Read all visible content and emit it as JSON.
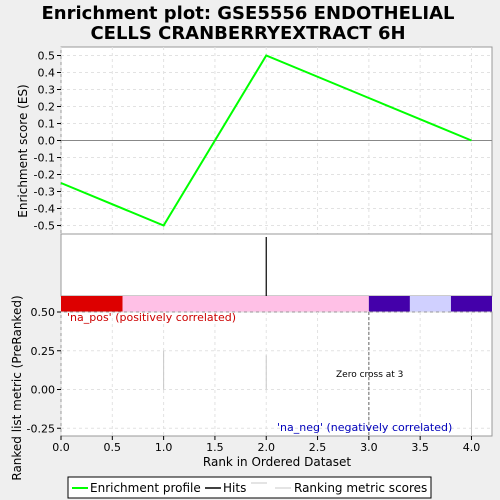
{
  "chart_data": {
    "type": "line",
    "title": "Enrichment plot: GSE5556 ENDOTHELIAL CELLS CRANBERRYEXTRACT 6H",
    "title_lines": [
      "Enrichment plot: GSE5556 ENDOTHELIAL",
      "CELLS CRANBERRYEXTRACT 6H"
    ],
    "xlabel": "Rank in Ordered Dataset",
    "x_ticks": [
      "0.0",
      "0.5",
      "1.0",
      "1.5",
      "2.0",
      "2.5",
      "3.0",
      "3.5",
      "4.0"
    ],
    "xlim": [
      0,
      4.2
    ],
    "top_panel": {
      "ylabel": "Enrichment score (ES)",
      "ylim": [
        -0.55,
        0.55
      ],
      "y_ticks": [
        "0.5",
        "0.4",
        "0.3",
        "0.2",
        "0.1",
        "0.0",
        "-0.1",
        "-0.2",
        "-0.3",
        "-0.4",
        "-0.5"
      ],
      "grid": true,
      "series": [
        {
          "x": [
            0,
            1,
            2,
            3,
            4
          ],
          "y": [
            -0.25,
            -0.5,
            0.5,
            0.25,
            0.0
          ]
        }
      ]
    },
    "hits": [
      2
    ],
    "color_bar": [
      {
        "from": 0.0,
        "to": 0.6,
        "color": "#dd0000"
      },
      {
        "from": 0.6,
        "to": 3.0,
        "color": "#ffc0e6"
      },
      {
        "from": 3.0,
        "to": 3.4,
        "color": "#4400aa"
      },
      {
        "from": 3.4,
        "to": 3.8,
        "color": "#d0d0ff"
      },
      {
        "from": 3.8,
        "to": 4.2,
        "color": "#4400aa"
      }
    ],
    "bottom_panel": {
      "ylabel": "Ranked list metric (PreRanked)",
      "ylim": [
        -0.3,
        0.5
      ],
      "y_ticks": [
        "0.50",
        "0.25",
        "0.00",
        "-0.25"
      ],
      "grid": true,
      "metric_bars": [
        {
          "x": 1,
          "value": 0.25
        },
        {
          "x": 2,
          "value": 0.22
        },
        {
          "x": 4,
          "value": -0.3
        }
      ],
      "zero_cross": 3,
      "zero_cross_label": "Zero cross at 3",
      "pos_label": "'na_pos' (positively correlated)",
      "neg_label": "'na_neg' (negatively correlated)"
    },
    "legend": {
      "placement": "bottom",
      "entries": [
        "Enrichment profile",
        "Hits",
        "Ranking metric scores"
      ]
    },
    "colors": {
      "profile": "#00ff00",
      "hits": "#000000",
      "metric": "#c8c8c8",
      "pos_label": "#cc0000",
      "neg_label": "#0000bb"
    }
  }
}
